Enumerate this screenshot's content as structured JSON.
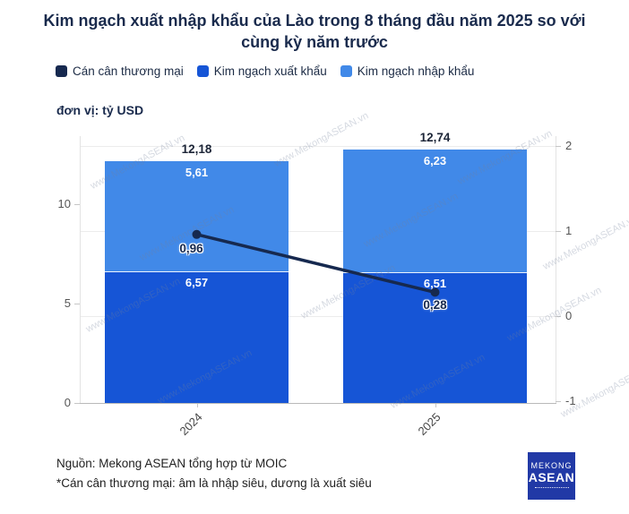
{
  "title": "Kim ngạch xuất nhập khẩu của Lào trong 8 tháng đầu năm 2025 so với cùng kỳ năm trước",
  "unit_label": "đơn vị: tỷ USD",
  "legend": [
    {
      "label": "Cán cân thương mại",
      "color": "#16294f"
    },
    {
      "label": "Kim ngạch xuất khẩu",
      "color": "#1655d6"
    },
    {
      "label": "Kim ngạch nhập khẩu",
      "color": "#4189e8"
    }
  ],
  "watermark": "www.MekongASEAN.vn",
  "footer": {
    "source": "Nguồn: Mekong ASEAN tổng hợp từ MOIC",
    "note": "*Cán cân thương mại: âm là nhập siêu, dương là xuất siêu"
  },
  "logo": {
    "line1": "MEKONG",
    "line2": "ASEAN",
    "color": "#2139a6"
  },
  "chart_data": {
    "type": "bar",
    "subtype": "stacked-bars-with-line-overlay",
    "title": "Kim ngạch xuất nhập khẩu của Lào trong 8 tháng đầu năm 2025 so với cùng kỳ năm trước",
    "unit": "tỷ USD",
    "categories": [
      "2024",
      "2025"
    ],
    "series": [
      {
        "name": "Kim ngạch xuất khẩu",
        "type": "bar",
        "stack_order": 0,
        "axis": "left",
        "values": [
          6.57,
          6.51
        ],
        "labels": [
          "6,57",
          "6,51"
        ],
        "color": "#1655d6"
      },
      {
        "name": "Kim ngạch nhập khẩu",
        "type": "bar",
        "stack_order": 1,
        "axis": "left",
        "values": [
          5.61,
          6.23
        ],
        "labels": [
          "5,61",
          "6,23"
        ],
        "color": "#4189e8"
      },
      {
        "name": "Cán cân thương mại",
        "type": "line",
        "axis": "right",
        "values": [
          0.96,
          0.28
        ],
        "labels": [
          "0,96",
          "0,28"
        ],
        "color": "#16294f"
      }
    ],
    "totals": {
      "values": [
        12.18,
        12.74
      ],
      "labels": [
        "12,18",
        "12,74"
      ]
    },
    "axis_left": {
      "ticks": [
        0,
        5,
        10
      ],
      "min": 0,
      "max": 12.9
    },
    "axis_right": {
      "ticks": [
        2,
        1,
        0,
        -1
      ],
      "min": -1,
      "max": 2
    },
    "grid": "horizontal",
    "legend_position": "top"
  }
}
